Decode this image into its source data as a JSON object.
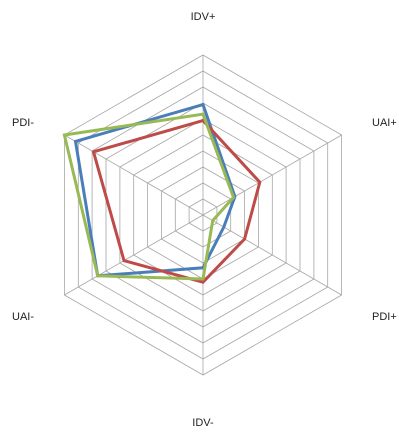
{
  "chart_data": {
    "type": "radar",
    "title": "",
    "axes": [
      "IDV+",
      "UAI+",
      "PDI+",
      "IDV-",
      "UAI-",
      "PDI-"
    ],
    "rlim": [
      0,
      10
    ],
    "grid_rings": 10,
    "grid": true,
    "legend": "none",
    "series": [
      {
        "color": "#4a7ebb",
        "values": [
          6.9,
          2.3,
          1.5,
          3.3,
          7.6,
          9.2
        ]
      },
      {
        "color": "#be4b48",
        "values": [
          5.9,
          4.1,
          3.0,
          4.2,
          5.7,
          7.9
        ]
      },
      {
        "color": "#98b954",
        "values": [
          6.3,
          2.2,
          0.7,
          4.0,
          7.6,
          10.0
        ]
      }
    ]
  }
}
